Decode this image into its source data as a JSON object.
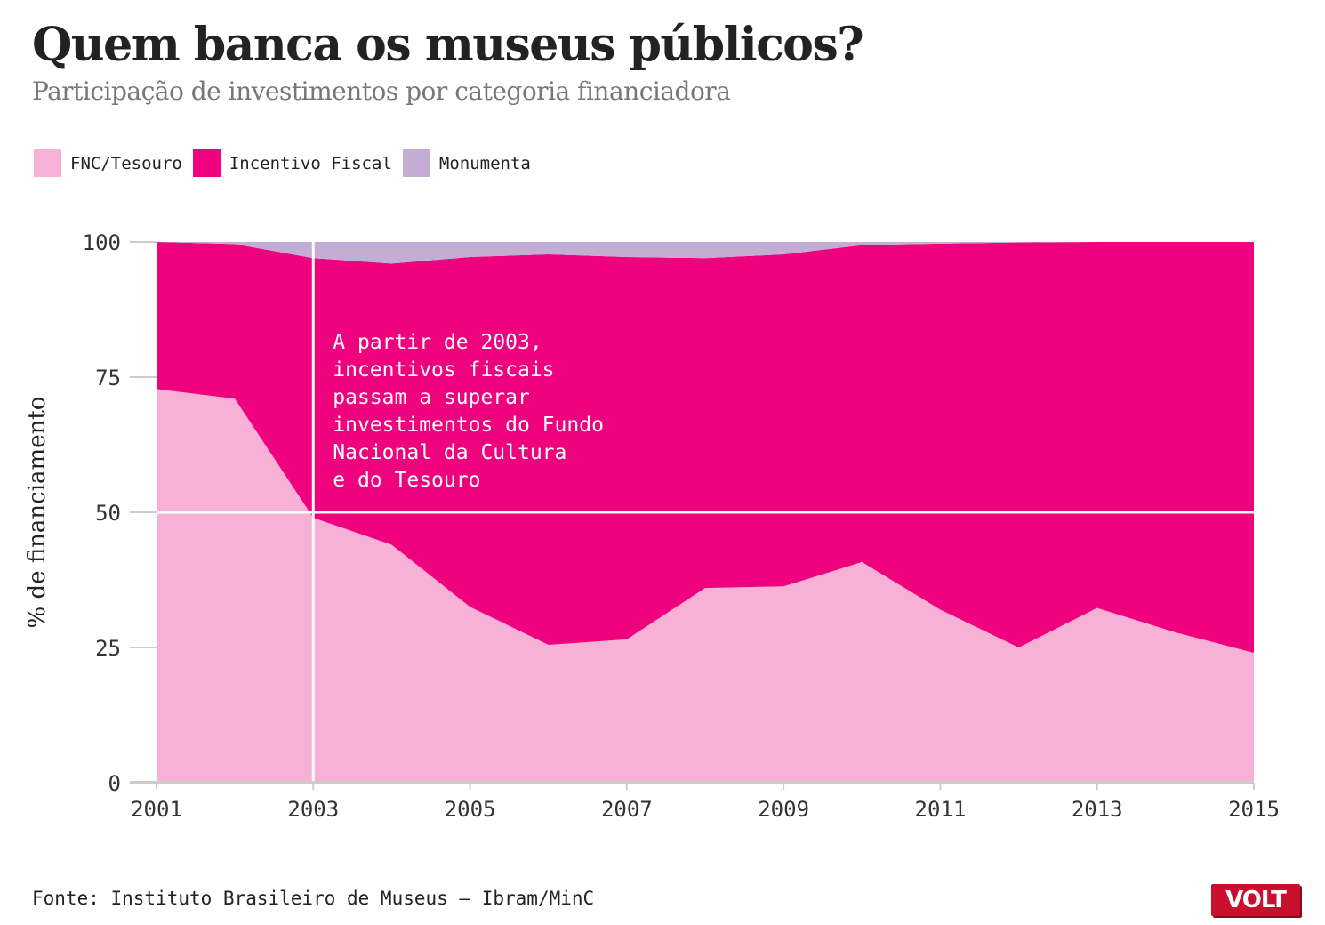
{
  "header": {
    "title": "Quem banca os museus públicos?",
    "subtitle": "Participação de investimentos por categoria financiadora"
  },
  "legend": [
    {
      "label": "FNC/Tesouro",
      "color": "#f7b0d6"
    },
    {
      "label": "Incentivo Fiscal",
      "color": "#ee027e"
    },
    {
      "label": "Monumenta",
      "color": "#c3add4"
    }
  ],
  "chart_data": {
    "type": "area",
    "stacked": true,
    "x": [
      2001,
      2002,
      2003,
      2004,
      2005,
      2006,
      2007,
      2008,
      2009,
      2010,
      2011,
      2012,
      2013,
      2014,
      2015
    ],
    "x_ticks": [
      "2001",
      "2003",
      "2005",
      "2007",
      "2009",
      "2011",
      "2013",
      "2015"
    ],
    "y_ticks": [
      "0",
      "25",
      "50",
      "75",
      "100"
    ],
    "ylim": [
      0,
      100
    ],
    "ylabel": "% de financiamento",
    "series": [
      {
        "name": "FNC/Tesouro",
        "color": "#f7b0d6",
        "values": [
          72.8,
          71.0,
          49.0,
          44.0,
          32.5,
          25.5,
          26.5,
          36.0,
          36.3,
          40.8,
          32.0,
          25.0,
          32.3,
          27.8,
          24.0
        ]
      },
      {
        "name": "Incentivo Fiscal",
        "color": "#ee027e",
        "values": [
          27.2,
          28.6,
          48.0,
          52.0,
          64.7,
          72.2,
          70.7,
          61.0,
          61.4,
          58.6,
          67.7,
          74.9,
          67.7,
          72.2,
          76.0
        ]
      },
      {
        "name": "Monumenta",
        "color": "#c3add4",
        "values": [
          0.0,
          0.4,
          3.0,
          4.0,
          2.8,
          2.3,
          2.8,
          3.0,
          2.3,
          0.6,
          0.3,
          0.1,
          0.0,
          0.0,
          0.0
        ]
      }
    ],
    "reference_lines": {
      "x": 2003,
      "y": 50
    },
    "annotation": {
      "x": 2003,
      "lines": [
        "A partir de 2003,",
        "incentivos fiscais",
        "passam a superar",
        "investimentos do Fundo",
        "Nacional da Cultura",
        "e do Tesouro"
      ]
    },
    "grid": false
  },
  "footer": {
    "source": "Fonte: Instituto Brasileiro de Museus – Ibram/MinC",
    "logo_text": "VOLT"
  }
}
